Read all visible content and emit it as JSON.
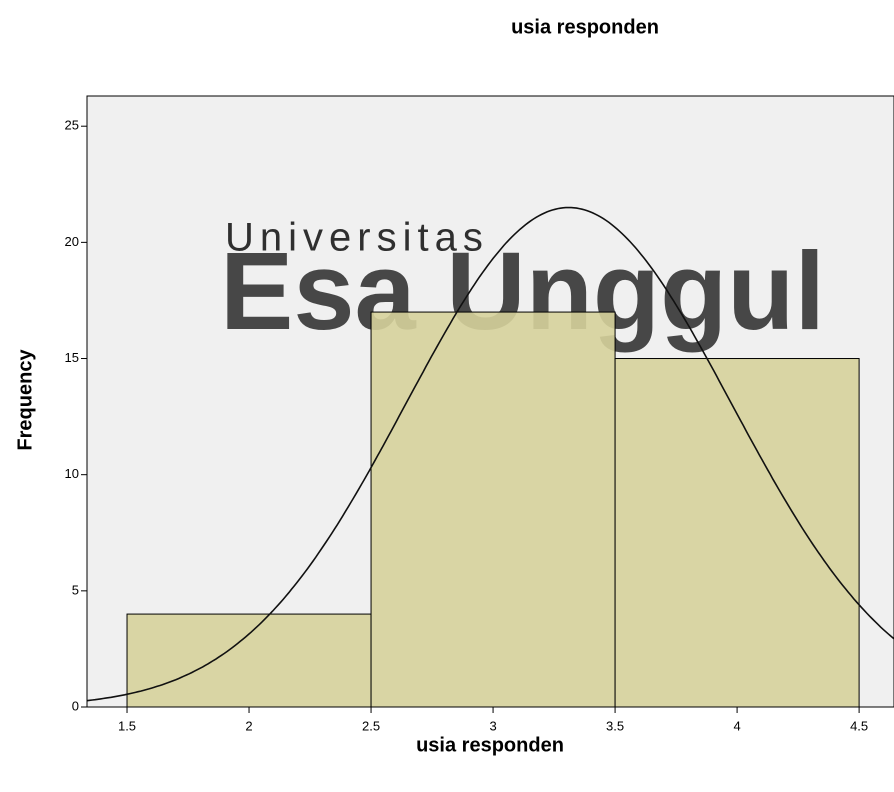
{
  "chart_data": {
    "type": "histogram",
    "title": "usia responden",
    "xlabel": "usia responden",
    "ylabel": "Frequency",
    "bins": [
      1.5,
      2.5,
      3.5,
      4.5
    ],
    "values": [
      4,
      17,
      15
    ],
    "color": "#d6d19b",
    "normal_curve": {
      "mean": 3.31,
      "sd": 0.668,
      "n": 36
    },
    "xlim": [
      1.336,
      4.643
    ],
    "xticks": [
      1.5,
      2,
      2.5,
      3,
      3.5,
      4,
      4.5
    ],
    "ylim": [
      0,
      26.3
    ],
    "yticks": [
      0,
      5,
      10,
      15,
      20,
      25
    ],
    "watermark": [
      "Universitas",
      "Esa Unggul"
    ]
  }
}
